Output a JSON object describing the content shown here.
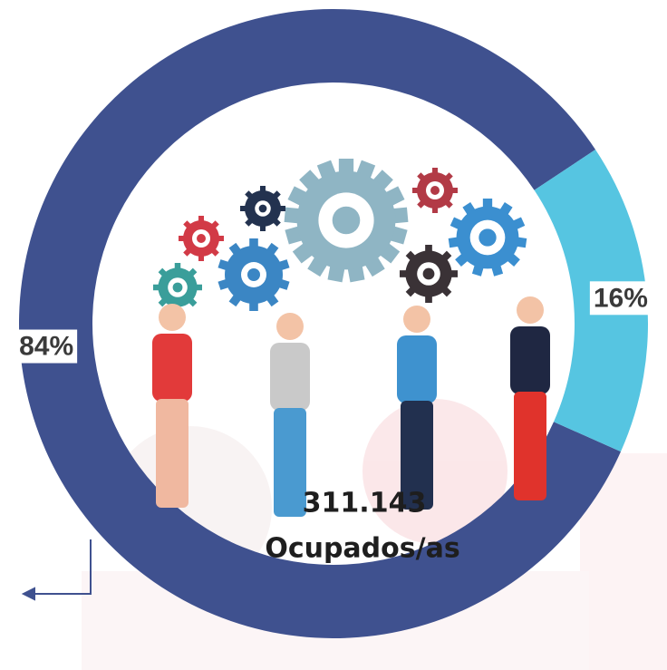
{
  "chart_data": {
    "type": "donut",
    "values": [
      84,
      16
    ],
    "value_labels": [
      "84%",
      "16%"
    ],
    "colors": [
      "#3f518f",
      "#56c5e1"
    ],
    "center_text": [
      "311.143",
      "Ocupados/as"
    ]
  }
}
